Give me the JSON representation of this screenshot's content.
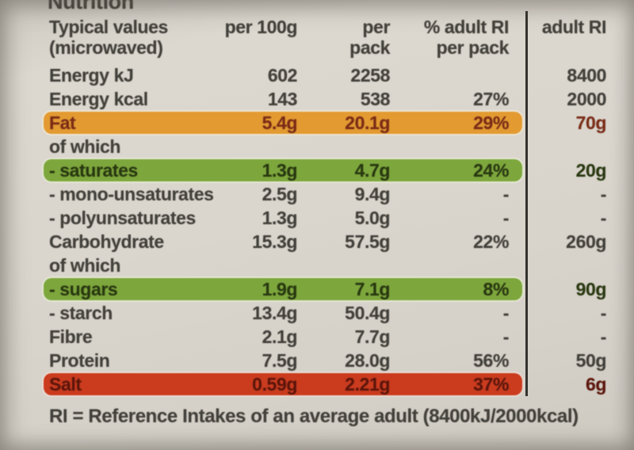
{
  "title": "Nutrition",
  "header": {
    "label_line1": "Typical values",
    "label_line2": "(microwaved)",
    "per100g": "per 100g",
    "perpack_line1": "per",
    "perpack_line2": "pack",
    "pct_line1": "% adult RI",
    "pct_line2": "per pack",
    "adultri": "adult RI"
  },
  "rows": [
    {
      "label": "Energy kJ",
      "per100g": "602",
      "perpack": "2258",
      "pct": "",
      "adultri": "8400",
      "highlight": "none"
    },
    {
      "label": "Energy kcal",
      "per100g": "143",
      "perpack": "538",
      "pct": "27%",
      "adultri": "2000",
      "highlight": "none"
    },
    {
      "label": "Fat",
      "per100g": "5.4g",
      "perpack": "20.1g",
      "pct": "29%",
      "adultri": "70g",
      "highlight": "orange"
    },
    {
      "label": "of which",
      "per100g": "",
      "perpack": "",
      "pct": "",
      "adultri": "",
      "highlight": "none"
    },
    {
      "label": "- saturates",
      "per100g": "1.3g",
      "perpack": "4.7g",
      "pct": "24%",
      "adultri": "20g",
      "highlight": "green"
    },
    {
      "label": "- mono-unsaturates",
      "per100g": "2.5g",
      "perpack": "9.4g",
      "pct": "-",
      "adultri": "-",
      "highlight": "none"
    },
    {
      "label": "- polyunsaturates",
      "per100g": "1.3g",
      "perpack": "5.0g",
      "pct": "-",
      "adultri": "-",
      "highlight": "none"
    },
    {
      "label": "Carbohydrate",
      "per100g": "15.3g",
      "perpack": "57.5g",
      "pct": "22%",
      "adultri": "260g",
      "highlight": "none"
    },
    {
      "label": "of which",
      "per100g": "",
      "perpack": "",
      "pct": "",
      "adultri": "",
      "highlight": "none"
    },
    {
      "label": "- sugars",
      "per100g": "1.9g",
      "perpack": "7.1g",
      "pct": "8%",
      "adultri": "90g",
      "highlight": "green"
    },
    {
      "label": "- starch",
      "per100g": "13.4g",
      "perpack": "50.4g",
      "pct": "-",
      "adultri": "-",
      "highlight": "none"
    },
    {
      "label": "Fibre",
      "per100g": "2.1g",
      "perpack": "7.7g",
      "pct": "-",
      "adultri": "-",
      "highlight": "none"
    },
    {
      "label": "Protein",
      "per100g": "7.5g",
      "perpack": "28.0g",
      "pct": "56%",
      "adultri": "50g",
      "highlight": "none"
    },
    {
      "label": "Salt",
      "per100g": "0.59g",
      "perpack": "2.21g",
      "pct": "37%",
      "adultri": "6g",
      "highlight": "red"
    }
  ],
  "footer": "RI = Reference Intakes of an average adult (8400kJ/2000kcal)",
  "colors": {
    "background": "#d8d4cc",
    "text": "#42403a",
    "fat_bar": "#e39a31",
    "fat_text": "#7c2b15",
    "saturates_sugars_bar": "#7da73c",
    "saturates_sugars_text": "#28380f",
    "salt_bar": "#cb3b1e",
    "salt_text": "#5e140a",
    "divider": "#34322e"
  }
}
